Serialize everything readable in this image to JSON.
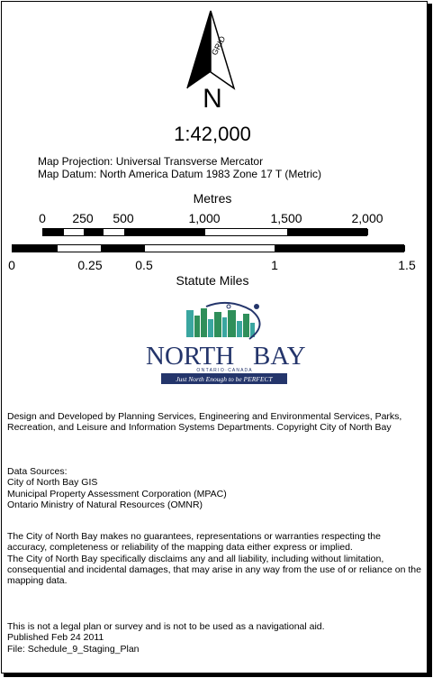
{
  "north_arrow": {
    "icon": "north-arrow-icon",
    "grid_label": "GRID",
    "north_letter": "N"
  },
  "scale": {
    "ratio": "1:42,000"
  },
  "projection": {
    "line1": "Map Projection: Universal Transverse Mercator",
    "line2": "Map Datum: North America Datum 1983 Zone 17 T (Metric)"
  },
  "metres_scale": {
    "title": "Metres",
    "ticks": [
      "0",
      "250",
      "500",
      "1,000",
      "1,500",
      "2,000"
    ]
  },
  "miles_scale": {
    "title": "Statute Miles",
    "ticks": [
      "0",
      "0.25",
      "0.5",
      "1",
      "1.5"
    ]
  },
  "logo": {
    "name_left": "NORTH",
    "name_right": "BAY",
    "subtitle": "O N T A R I O · C A N A D A",
    "tagline": "Just North Enough to be PERFECT",
    "colors": {
      "navy": "#24356b",
      "green": "#2f8f5a",
      "teal": "#3aa6a0"
    }
  },
  "credits": {
    "p1": "Design and Developed by Planning Services, Engineering and Environmental Services, Parks, Recreation, and Leisure and Information Systems Departments. Copyright City of North Bay",
    "sources_heading": "Data Sources:",
    "sources": [
      "City of North Bay GIS",
      "Municipal Property Assessment Corporation (MPAC)",
      "Ontario Ministry of Natural Resources (OMNR)"
    ],
    "disclaimer1": "The City of North Bay makes no guarantees, representations or warranties respecting the accuracy, completeness or reliability of the mapping data either express or implied.",
    "disclaimer2": "The City of North Bay specifically disclaims any and all liability, including without limitation, consequential and incidental damages, that may arise in any way from the use of or reliance on the mapping data.",
    "legal": "This is not a legal plan or survey and is not to be used as a navigational aid.",
    "published": "Published Feb 24 2011",
    "file": "File: Schedule_9_Staging_Plan"
  }
}
